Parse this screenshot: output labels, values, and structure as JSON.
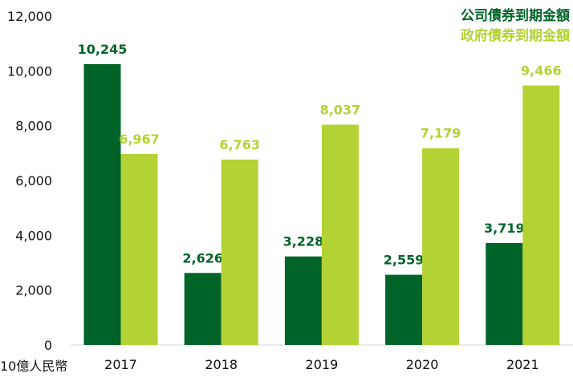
{
  "chart_data": {
    "type": "bar",
    "unit_label": "10億人民幣",
    "categories": [
      "2017",
      "2018",
      "2019",
      "2020",
      "2021"
    ],
    "series": [
      {
        "name": "公司債券到期金額",
        "color": "#006428",
        "values": [
          10245,
          2626,
          3228,
          2559,
          3719
        ]
      },
      {
        "name": "政府債券到期金額",
        "color": "#B3D335",
        "values": [
          6967,
          6763,
          8037,
          7179,
          9466
        ]
      }
    ],
    "value_labels": [
      [
        "10,245",
        "2,626",
        "3,228",
        "2,559",
        "3,719"
      ],
      [
        "6,967",
        "6,763",
        "8,037",
        "7,179",
        "9,466"
      ]
    ],
    "yticks": [
      "0",
      "2,000",
      "4,000",
      "6,000",
      "8,000",
      "10,000",
      "12,000"
    ],
    "ylim": [
      0,
      12000
    ],
    "grid": false,
    "legend_position": "top-right"
  }
}
